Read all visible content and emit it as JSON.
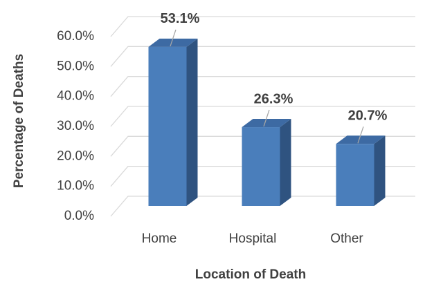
{
  "chart_data": {
    "type": "bar3d",
    "x_label": "Location of Death",
    "y_label": "Percentage of Deaths",
    "categories": [
      "Home",
      "Hospital",
      "Other"
    ],
    "values": [
      53.1,
      26.3,
      20.7
    ],
    "value_labels": [
      "53.1%",
      "26.3%",
      "20.7%"
    ],
    "color": "#4a7ebb",
    "ylim": [
      0,
      60
    ],
    "yticks": [
      {
        "value": 0,
        "label": "0.0%"
      },
      {
        "value": 10,
        "label": "10.0%"
      },
      {
        "value": 20,
        "label": "20.0%"
      },
      {
        "value": 30,
        "label": "30.0%"
      },
      {
        "value": 40,
        "label": "40.0%"
      },
      {
        "value": 50,
        "label": "50.0%"
      },
      {
        "value": 60,
        "label": "60.0%"
      }
    ],
    "grid": true
  }
}
